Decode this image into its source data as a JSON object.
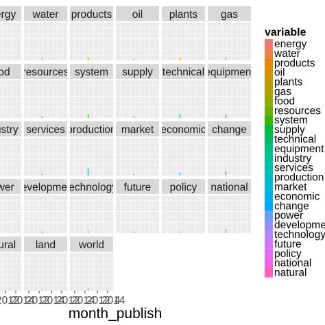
{
  "chart_data": {
    "type": "bar",
    "faceted": true,
    "xlabel": "month_publish",
    "ylabel": "",
    "x_tick_labels": [
      "2012",
      "2014",
      "2012",
      "2014",
      "2012",
      "2014",
      "2012",
      "2014"
    ],
    "legend": {
      "title": "variable",
      "placement": "right",
      "entries": [
        {
          "name": "energy",
          "color": "#F8766D"
        },
        {
          "name": "water",
          "color": "#EE8044"
        },
        {
          "name": "products",
          "color": "#E38900"
        },
        {
          "name": "oil",
          "color": "#D39200"
        },
        {
          "name": "plants",
          "color": "#C09B00"
        },
        {
          "name": "gas",
          "color": "#A9A400"
        },
        {
          "name": "food",
          "color": "#8EAB00"
        },
        {
          "name": "resources",
          "color": "#6BB100"
        },
        {
          "name": "system",
          "color": "#39B600"
        },
        {
          "name": "supply",
          "color": "#00BA38"
        },
        {
          "name": "technical",
          "color": "#00BD5F"
        },
        {
          "name": "equipment",
          "color": "#00BF7D"
        },
        {
          "name": "industry",
          "color": "#00C097"
        },
        {
          "name": "services",
          "color": "#00C0AF"
        },
        {
          "name": "production",
          "color": "#00BDC4"
        },
        {
          "name": "market",
          "color": "#00B8D8"
        },
        {
          "name": "economic",
          "color": "#00B0EA"
        },
        {
          "name": "change",
          "color": "#00A5FF"
        },
        {
          "name": "power",
          "color": "#6C9EFF"
        },
        {
          "name": "development",
          "color": "#9590FF"
        },
        {
          "name": "technology",
          "color": "#B983FF"
        },
        {
          "name": "future",
          "color": "#D376FF"
        },
        {
          "name": "policy",
          "color": "#E76BF3"
        },
        {
          "name": "national",
          "color": "#F563E3"
        },
        {
          "name": "natural",
          "color": "#FF62BC"
        }
      ]
    },
    "panels": [
      {
        "label": "energy",
        "spike": 0.78
      },
      {
        "label": "water",
        "spike": 0.08
      },
      {
        "label": "products",
        "spike": 0.08
      },
      {
        "label": "oil",
        "spike": 0.06
      },
      {
        "label": "plants",
        "spike": 0.08
      },
      {
        "label": "gas",
        "spike": 0.08
      },
      {
        "label": "food",
        "spike": 0.07
      },
      {
        "label": "resources",
        "spike": 0.05
      },
      {
        "label": "system",
        "spike": 0.1
      },
      {
        "label": "supply",
        "spike": 0.05
      },
      {
        "label": "technical",
        "spike": 0.1
      },
      {
        "label": "equipment",
        "spike": 0.08
      },
      {
        "label": "industry",
        "spike": 0.1
      },
      {
        "label": "services",
        "spike": 0.05
      },
      {
        "label": "production",
        "spike": 0.2
      },
      {
        "label": "market",
        "spike": 0.06
      },
      {
        "label": "economic",
        "spike": 0.07
      },
      {
        "label": "change",
        "spike": 0.12
      },
      {
        "label": "power",
        "spike": 0.08
      },
      {
        "label": "development",
        "spike": 0.05
      },
      {
        "label": "technology",
        "spike": 0.07
      },
      {
        "label": "future",
        "spike": 0.05
      },
      {
        "label": "policy",
        "spike": 0.05
      },
      {
        "label": "national",
        "spike": 0.12
      },
      {
        "label": "natural",
        "spike": 0.06
      },
      {
        "label": "land",
        "spike": 0.04
      },
      {
        "label": "world",
        "spike": 0.07
      }
    ],
    "panel_bg_color": "#EBEBEB",
    "strip_color": "#D9D9D9",
    "grid": true
  }
}
